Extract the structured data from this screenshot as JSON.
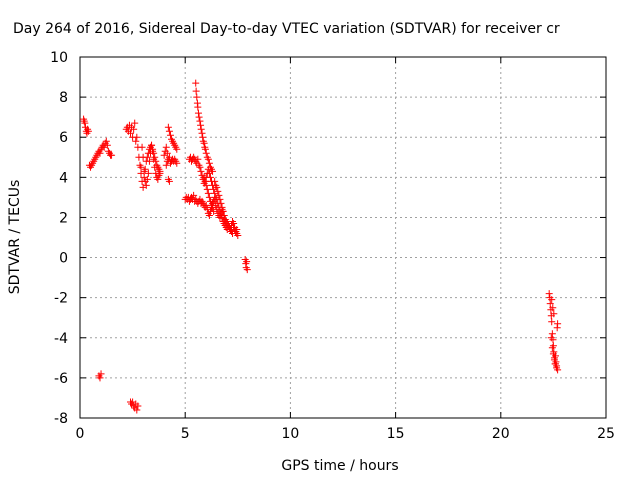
{
  "chart_data": {
    "type": "scatter",
    "title": "Day 264 of 2016, Sidereal Day-to-day VTEC variation (SDTVAR) for receiver cr",
    "xlabel": "GPS time / hours",
    "ylabel": "SDTVAR / TECUs",
    "xlim": [
      0,
      25
    ],
    "ylim": [
      -8,
      10
    ],
    "xticks": [
      0,
      5,
      10,
      15,
      20,
      25
    ],
    "yticks": [
      -8,
      -6,
      -4,
      -2,
      0,
      2,
      4,
      6,
      8,
      10
    ],
    "xtick_labels": [
      "0",
      "5",
      "10",
      "15",
      "20",
      "25"
    ],
    "ytick_labels": [
      "-8",
      "-6",
      "-4",
      "-2",
      "0",
      "2",
      "4",
      "6",
      "8",
      "10"
    ],
    "grid": true,
    "marker": "+",
    "color": "#ff0000",
    "series": [
      {
        "name": "SDTVAR",
        "x": [
          0.17,
          0.2,
          0.23,
          0.26,
          0.3,
          0.33,
          0.36,
          0.4,
          0.45,
          0.5,
          0.55,
          0.6,
          0.65,
          0.7,
          0.75,
          0.8,
          0.85,
          0.9,
          0.95,
          1.0,
          1.05,
          1.1,
          1.15,
          1.2,
          1.25,
          1.3,
          1.35,
          1.4,
          1.45,
          1.5,
          0.9,
          0.95,
          1.0,
          2.2,
          2.25,
          2.3,
          2.35,
          2.4,
          2.45,
          2.5,
          2.55,
          2.6,
          2.65,
          2.7,
          2.75,
          2.8,
          2.85,
          2.9,
          2.95,
          3.0,
          3.05,
          3.1,
          3.15,
          3.2,
          3.25,
          3.3,
          3.35,
          3.4,
          3.45,
          3.5,
          3.55,
          3.6,
          3.65,
          3.7,
          3.75,
          3.8,
          2.9,
          2.95,
          3.0,
          3.05,
          3.1,
          3.15,
          3.2,
          3.25,
          3.3,
          3.35,
          3.4,
          3.45,
          3.5,
          3.55,
          3.6,
          3.65,
          3.7,
          3.75,
          3.8,
          4.0,
          4.05,
          4.1,
          4.15,
          4.2,
          4.25,
          4.3,
          4.35,
          4.4,
          4.45,
          4.5,
          4.55,
          4.6,
          4.1,
          4.15,
          4.2,
          4.25,
          4.3,
          4.35,
          4.4,
          4.45,
          4.5,
          4.55,
          4.6,
          4.2,
          4.25,
          2.4,
          2.45,
          2.5,
          2.55,
          2.6,
          2.65,
          2.7,
          2.75,
          5.0,
          5.05,
          5.1,
          5.15,
          5.2,
          5.25,
          5.3,
          5.35,
          5.4,
          5.45,
          5.5,
          5.55,
          5.6,
          5.65,
          5.7,
          5.75,
          5.8,
          5.85,
          5.9,
          5.95,
          6.0,
          6.05,
          6.1,
          6.15,
          6.2,
          6.25,
          6.3,
          6.35,
          6.4,
          6.45,
          6.5,
          6.55,
          6.6,
          6.65,
          6.7,
          6.75,
          6.8,
          6.85,
          6.9,
          6.95,
          7.0,
          7.05,
          7.1,
          7.15,
          7.2,
          7.25,
          7.3,
          7.35,
          7.4,
          7.45,
          5.5,
          5.52,
          5.55,
          5.58,
          5.6,
          5.63,
          5.66,
          5.7,
          5.73,
          5.76,
          5.8,
          5.83,
          5.86,
          5.9,
          5.93,
          5.96,
          6.0,
          6.05,
          6.1,
          6.15,
          6.2,
          6.25,
          6.3,
          5.2,
          5.25,
          5.3,
          5.35,
          5.4,
          5.45,
          5.5,
          5.55,
          5.6,
          5.65,
          5.7,
          5.75,
          5.8,
          5.85,
          5.9,
          5.95,
          6.0,
          6.05,
          6.1,
          6.15,
          6.2,
          6.25,
          6.3,
          6.35,
          6.4,
          6.45,
          6.5,
          6.55,
          6.6,
          6.65,
          6.7,
          6.75,
          6.8,
          6.85,
          6.9,
          6.95,
          7.0,
          5.9,
          5.95,
          6.0,
          6.05,
          6.1,
          6.15,
          6.2,
          6.25,
          6.3,
          6.35,
          6.4,
          6.45,
          6.5,
          6.55,
          6.6,
          6.65,
          6.7,
          6.75,
          6.8,
          6.85,
          6.9,
          6.95,
          7.0,
          7.05,
          7.1,
          7.15,
          7.2,
          7.25,
          7.3,
          7.35,
          7.4,
          7.45,
          7.5,
          7.85,
          7.88,
          7.9,
          7.92,
          7.95,
          22.3,
          22.33,
          22.35,
          22.38,
          22.4,
          22.42,
          22.45,
          22.48,
          22.5,
          22.52,
          22.55,
          22.58,
          22.6,
          22.62,
          22.65,
          22.68,
          22.7,
          22.4,
          22.45,
          22.5,
          22.55,
          22.6,
          22.65,
          22.7,
          22.42,
          22.47,
          22.52
        ],
        "y": [
          6.9,
          6.8,
          6.7,
          6.5,
          6.3,
          6.2,
          6.4,
          6.3,
          4.6,
          4.5,
          4.6,
          4.7,
          4.8,
          4.9,
          5.0,
          5.1,
          5.2,
          5.3,
          5.2,
          5.4,
          5.5,
          5.6,
          5.5,
          5.7,
          5.8,
          5.6,
          5.3,
          5.2,
          5.1,
          5.1,
          -5.9,
          -6.0,
          -5.8,
          6.4,
          6.5,
          6.3,
          6.6,
          6.2,
          6.5,
          6.0,
          6.4,
          6.7,
          5.8,
          6.0,
          5.5,
          5.0,
          4.6,
          4.2,
          3.8,
          3.5,
          4.0,
          4.4,
          4.8,
          5.0,
          5.2,
          5.4,
          5.5,
          5.6,
          5.4,
          5.2,
          5.0,
          4.8,
          4.6,
          4.5,
          4.4,
          4.3,
          4.5,
          5.5,
          5.0,
          4.3,
          3.8,
          3.6,
          3.9,
          4.2,
          4.8,
          5.2,
          5.6,
          5.3,
          4.9,
          4.5,
          4.2,
          4.0,
          3.9,
          4.1,
          4.2,
          5.1,
          5.3,
          5.5,
          5.2,
          6.5,
          6.3,
          6.1,
          5.9,
          5.8,
          5.7,
          5.6,
          5.5,
          5.4,
          4.6,
          4.8,
          4.9,
          5.0,
          4.7,
          4.8,
          4.9,
          4.8,
          4.9,
          4.8,
          4.7,
          3.9,
          3.8,
          -7.2,
          -7.3,
          -7.2,
          -7.4,
          -7.5,
          -7.3,
          -7.6,
          -7.4,
          2.9,
          3.0,
          2.9,
          3.0,
          2.8,
          2.9,
          3.0,
          2.9,
          3.1,
          2.8,
          2.9,
          2.8,
          2.7,
          2.8,
          2.9,
          2.7,
          2.8,
          2.7,
          2.6,
          2.5,
          2.6,
          2.4,
          2.2,
          2.1,
          2.3,
          2.5,
          2.7,
          2.8,
          2.9,
          2.6,
          2.4,
          2.2,
          2.1,
          2.0,
          2.2,
          2.4,
          2.3,
          2.1,
          1.9,
          1.8,
          1.7,
          1.6,
          1.5,
          1.4,
          1.6,
          1.8,
          1.7,
          1.5,
          1.3,
          1.4,
          8.7,
          8.3,
          8.0,
          7.7,
          7.5,
          7.2,
          7.0,
          6.8,
          6.6,
          6.4,
          6.2,
          6.0,
          5.8,
          5.7,
          5.5,
          5.4,
          5.2,
          5.0,
          4.9,
          4.7,
          4.5,
          4.4,
          4.3,
          4.9,
          5.0,
          4.8,
          4.9,
          5.0,
          4.9,
          4.8,
          4.7,
          4.9,
          4.6,
          4.5,
          4.3,
          4.1,
          3.9,
          3.7,
          3.8,
          4.0,
          4.2,
          4.4,
          4.2,
          4.0,
          3.8,
          3.6,
          3.4,
          3.2,
          3.0,
          2.9,
          2.7,
          2.5,
          2.3,
          2.1,
          2.0,
          1.8,
          1.7,
          1.6,
          1.5,
          1.4,
          4.0,
          3.8,
          3.6,
          3.4,
          3.2,
          3.0,
          2.8,
          2.6,
          2.5,
          2.3,
          3.8,
          3.6,
          3.5,
          3.3,
          3.1,
          2.9,
          2.7,
          2.5,
          2.3,
          2.1,
          1.9,
          1.8,
          1.7,
          1.6,
          1.5,
          1.4,
          1.3,
          1.2,
          1.5,
          1.4,
          1.3,
          1.2,
          1.1,
          -0.1,
          -0.3,
          -0.5,
          -0.2,
          -0.6,
          -1.8,
          -2.0,
          -2.3,
          -2.6,
          -2.9,
          -3.2,
          -3.8,
          -4.1,
          -4.4,
          -4.7,
          -5.0,
          -5.3,
          -4.9,
          -5.2,
          -5.5,
          -3.5,
          -3.3,
          -4.0,
          -4.5,
          -4.8,
          -5.1,
          -5.3,
          -5.4,
          -5.6,
          -2.1,
          -2.5,
          -2.8
        ]
      }
    ]
  }
}
